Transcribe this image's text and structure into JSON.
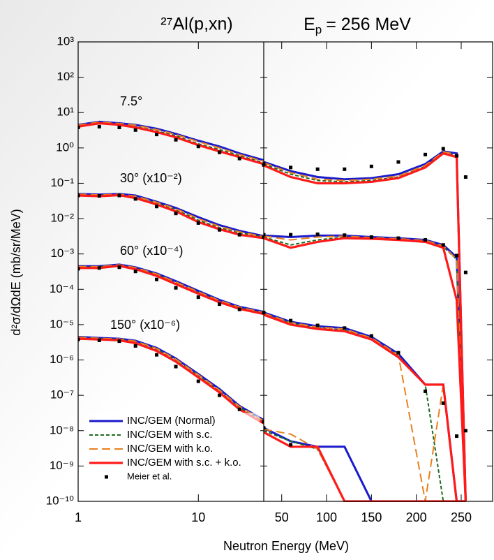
{
  "chart_data": {
    "type": "line",
    "title": "²⁷Al(p,xn)",
    "energy_label": {
      "symbol": "E",
      "subscript": "p",
      "text": "= 256 MeV"
    },
    "ylabel": "d²σ/dΩdE (mb/sr/MeV)",
    "xlabel": "Neutron Energy (MeV)",
    "yscale": "log",
    "ylim": [
      1e-10,
      1000
    ],
    "yticks": [
      {
        "value": 1000,
        "label": "10³"
      },
      {
        "value": 100,
        "label": "10²"
      },
      {
        "value": 10,
        "label": "10¹"
      },
      {
        "value": 1,
        "label": "10⁰"
      },
      {
        "value": 0.1,
        "label": "10⁻¹"
      },
      {
        "value": 0.01,
        "label": "10⁻²"
      },
      {
        "value": 0.001,
        "label": "10⁻³"
      },
      {
        "value": 0.0001,
        "label": "10⁻⁴"
      },
      {
        "value": 1e-05,
        "label": "10⁻⁵"
      },
      {
        "value": 1e-06,
        "label": "10⁻⁶"
      },
      {
        "value": 1e-07,
        "label": "10⁻⁷"
      },
      {
        "value": 1e-08,
        "label": "10⁻⁸"
      },
      {
        "value": 1e-09,
        "label": "10⁻⁹"
      },
      {
        "value": 1e-10,
        "label": "10⁻¹⁰"
      }
    ],
    "annotations": [
      "7.5°",
      "30° (x10⁻²)",
      "60° (x10⁻⁴)",
      "150° (x10⁻⁶)"
    ],
    "panels": [
      {
        "xscale": "log",
        "xlim": [
          1,
          35
        ],
        "xticks": [
          1,
          10
        ],
        "x": [
          1,
          1.5,
          2.2,
          3,
          4.5,
          6.5,
          10,
          15,
          22,
          35
        ]
      },
      {
        "xscale": "linear",
        "xlim": [
          30,
          285
        ],
        "xticks": [
          50,
          100,
          150,
          200,
          250
        ],
        "x": [
          30,
          60,
          90,
          120,
          150,
          180,
          210,
          230,
          245,
          255
        ]
      }
    ],
    "series": [
      {
        "name": "INC/GEM (Normal)",
        "color": "#1a1acc",
        "style": "solid",
        "values": [
          [
            [
              4.5,
              5.5,
              5.0,
              4.5,
              3.5,
              2.5,
              1.6,
              1.1,
              0.7,
              0.45
            ],
            [
              0.05,
              0.048,
              0.05,
              0.045,
              0.03,
              0.02,
              0.011,
              0.0065,
              0.0045,
              0.0032
            ],
            [
              0.00045,
              0.00045,
              0.0005,
              0.00042,
              0.00028,
              0.00017,
              9e-05,
              5e-05,
              3.2e-05,
              2.3e-05
            ],
            [
              4.5e-06,
              4.2e-06,
              4e-06,
              3.5e-06,
              2.2e-06,
              1.1e-06,
              4e-07,
              1.5e-07,
              5e-08,
              2e-08
            ]
          ],
          [
            [
              0.4,
              0.22,
              0.15,
              0.13,
              0.14,
              0.18,
              0.35,
              0.8,
              0.7,
              1e-10
            ],
            [
              0.0033,
              0.003,
              0.0033,
              0.0033,
              0.003,
              0.0028,
              0.0025,
              0.0018,
              0.0008,
              1e-10
            ],
            [
              2.2e-05,
              1.2e-05,
              9e-06,
              8e-06,
              4.5e-06,
              1.5e-06,
              2e-07,
              2e-07,
              1e-10,
              1e-10
            ],
            [
              1.2e-08,
              5e-09,
              3.5e-09,
              3.5e-09,
              1e-10,
              1e-10,
              1e-10,
              1e-10,
              1e-10,
              1e-10
            ]
          ]
        ]
      },
      {
        "name": "INC/GEM with s.c.",
        "color": "#1e6b1e",
        "style": "short-dash",
        "values": [
          [
            [
              4.2,
              5.2,
              4.6,
              4.0,
              3.0,
              2.2,
              1.3,
              0.9,
              0.6,
              0.38
            ],
            [
              0.047,
              0.045,
              0.047,
              0.04,
              0.027,
              0.018,
              0.009,
              0.0055,
              0.004,
              0.003
            ],
            [
              0.00043,
              0.00043,
              0.00048,
              0.0004,
              0.00026,
              0.00015,
              8e-05,
              4.5e-05,
              3e-05,
              2.1e-05
            ],
            [
              4.2e-06,
              4e-06,
              3.8e-06,
              3.2e-06,
              2e-06,
              1e-06,
              3.6e-07,
              1.3e-07,
              4.5e-08,
              1.8e-08
            ]
          ],
          [
            [
              0.35,
              0.18,
              0.12,
              0.11,
              0.12,
              0.15,
              0.3,
              0.75,
              0.6,
              1e-10
            ],
            [
              0.003,
              0.0018,
              0.0025,
              0.003,
              0.0028,
              0.0026,
              0.0023,
              0.0016,
              0.0007,
              1e-10
            ],
            [
              2e-05,
              1.1e-05,
              8e-06,
              7e-06,
              4e-06,
              1.3e-06,
              2e-07,
              1e-10,
              1e-10,
              1e-10
            ],
            [
              1e-08,
              5e-09,
              3e-09,
              1e-10,
              1e-10,
              1e-10,
              1e-10,
              1e-10,
              1e-10,
              1e-10
            ]
          ]
        ]
      },
      {
        "name": "INC/GEM with k.o.",
        "color": "#e8801e",
        "style": "long-dash",
        "values": [
          [
            [
              4.4,
              5.4,
              4.9,
              4.4,
              3.3,
              2.4,
              1.5,
              1.0,
              0.65,
              0.42
            ],
            [
              0.049,
              0.047,
              0.049,
              0.043,
              0.029,
              0.019,
              0.01,
              0.006,
              0.0042,
              0.0031
            ],
            [
              0.00044,
              0.00044,
              0.00049,
              0.00041,
              0.00027,
              0.00016,
              8.5e-05,
              4.8e-05,
              3.1e-05,
              2.2e-05
            ],
            [
              4.4e-06,
              4.1e-06,
              3.9e-06,
              3.4e-06,
              2.1e-06,
              1.05e-06,
              3.8e-07,
              1.4e-07,
              4.8e-08,
              1.9e-08
            ]
          ],
          [
            [
              0.38,
              0.2,
              0.13,
              0.12,
              0.13,
              0.16,
              0.32,
              0.78,
              0.65,
              1e-10
            ],
            [
              0.0032,
              0.0025,
              0.003,
              0.0032,
              0.0029,
              0.0027,
              0.0024,
              0.0017,
              0.0007,
              1e-10
            ],
            [
              2.1e-05,
              1.15e-05,
              8.5e-06,
              7.5e-06,
              4.2e-06,
              1.4e-06,
              1e-10,
              2e-07,
              1e-10,
              1e-10
            ],
            [
              1.1e-08,
              8e-09,
              3e-09,
              1e-10,
              1e-10,
              1e-10,
              1e-10,
              1e-10,
              1e-10,
              1e-10
            ]
          ]
        ]
      },
      {
        "name": "INC/GEM with s.c. + k.o.",
        "color": "#ff1a1a",
        "style": "thick",
        "values": [
          [
            [
              4.0,
              5.0,
              4.5,
              3.8,
              2.8,
              2.0,
              1.2,
              0.8,
              0.55,
              0.35
            ],
            [
              0.045,
              0.043,
              0.046,
              0.038,
              0.025,
              0.016,
              0.008,
              0.005,
              0.0035,
              0.0028
            ],
            [
              0.0004,
              0.0004,
              0.00046,
              0.00037,
              0.00024,
              0.00014,
              7.5e-05,
              4.3e-05,
              2.8e-05,
              2e-05
            ],
            [
              4e-06,
              3.8e-06,
              3.6e-06,
              3e-06,
              1.8e-06,
              9e-07,
              3.2e-07,
              1.2e-07,
              4e-08,
              1.6e-08
            ]
          ],
          [
            [
              0.32,
              0.15,
              0.1,
              0.1,
              0.11,
              0.14,
              0.28,
              0.7,
              0.55,
              1e-10
            ],
            [
              0.0028,
              0.0015,
              0.0022,
              0.0028,
              0.0027,
              0.0025,
              0.0022,
              0.0015,
              5e-05,
              1e-10
            ],
            [
              1.9e-05,
              1e-05,
              7.5e-06,
              6.5e-06,
              3.8e-06,
              1.2e-06,
              2e-07,
              2e-07,
              1e-10,
              1e-10
            ],
            [
              9e-09,
              3.5e-09,
              3.5e-09,
              1e-10,
              1e-10,
              1e-10,
              1e-10,
              1e-10,
              1e-10,
              1e-10
            ]
          ]
        ]
      },
      {
        "name": "Meier et al.",
        "color": "#000000",
        "style": "markers",
        "values": [
          [
            [
              3.8,
              4.0,
              3.8,
              3.2,
              2.4,
              1.7,
              1.1,
              0.75,
              0.5,
              0.33
            ],
            [
              0.045,
              0.044,
              0.045,
              0.036,
              0.022,
              0.014,
              0.0075,
              0.0048,
              0.0035,
              0.003
            ],
            [
              0.00038,
              0.0004,
              0.00042,
              0.00032,
              0.00019,
              0.00011,
              6e-05,
              3.8e-05,
              2.7e-05,
              2.2e-05
            ],
            [
              3.8e-06,
              3.6e-06,
              3.4e-06,
              2.5e-06,
              1.4e-06,
              6.5e-07,
              2.5e-07,
              1e-07,
              4e-08,
              1.8e-08
            ]
          ],
          [
            [
              0.35,
              0.28,
              0.25,
              0.25,
              0.3,
              0.4,
              0.65,
              0.95,
              0.6,
              0.15
            ],
            [
              0.0035,
              0.0035,
              0.0036,
              0.0034,
              0.003,
              0.0028,
              0.0025,
              0.0018,
              0.0009,
              0.0003
            ],
            [
              2.2e-05,
              1.3e-05,
              9.5e-06,
              8e-06,
              4.8e-06,
              1.6e-06,
              1.3e-07,
              6e-08,
              7e-09,
              1e-08
            ],
            [
              1.2e-08,
              4e-09,
              null,
              null,
              null,
              null,
              null,
              null,
              null,
              null
            ]
          ]
        ]
      }
    ]
  }
}
